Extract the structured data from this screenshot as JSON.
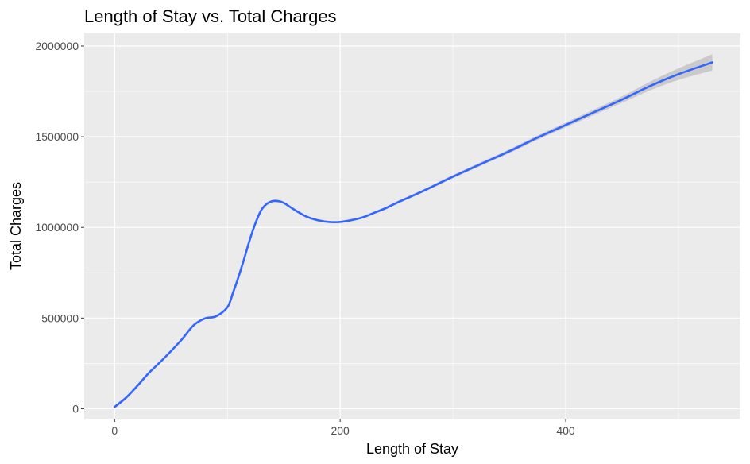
{
  "chart_data": {
    "type": "line",
    "title": "Length of Stay vs. Total Charges",
    "xlabel": "Length of Stay",
    "ylabel": "Total Charges",
    "xlim": [
      -27,
      555
    ],
    "ylim": [
      -55000,
      2070000
    ],
    "x_ticks": [
      0,
      200,
      400
    ],
    "x_tick_labels": [
      "0",
      "200",
      "400"
    ],
    "y_ticks": [
      0,
      500000,
      1000000,
      1500000,
      2000000
    ],
    "y_tick_labels": [
      "0",
      "500000",
      "1000000",
      "1500000",
      "2000000"
    ],
    "grid": true,
    "legend": "none",
    "colors": {
      "panel": "#ebebeb",
      "grid": "#ffffff",
      "line": "#3366ff",
      "ribbon": "#bfbfbf"
    },
    "series": [
      {
        "smooth": true,
        "x": [
          0,
          10,
          20,
          30,
          40,
          50,
          60,
          70,
          80,
          90,
          100,
          105,
          110,
          115,
          120,
          125,
          130,
          135,
          140,
          145,
          150,
          160,
          170,
          180,
          190,
          200,
          210,
          220,
          230,
          240,
          250,
          275,
          300,
          325,
          350,
          375,
          400,
          425,
          450,
          475,
          500,
          530
        ],
        "y": [
          10000,
          60000,
          125000,
          195000,
          255000,
          318000,
          385000,
          460000,
          498000,
          510000,
          560000,
          640000,
          730000,
          830000,
          935000,
          1025000,
          1095000,
          1130000,
          1145000,
          1145000,
          1135000,
          1095000,
          1060000,
          1040000,
          1030000,
          1030000,
          1040000,
          1055000,
          1080000,
          1105000,
          1135000,
          1205000,
          1280000,
          1350000,
          1420000,
          1495000,
          1565000,
          1635000,
          1705000,
          1780000,
          1845000,
          1910000
        ],
        "ci_halfwidth": [
          9000,
          7000,
          6000,
          6000,
          6000,
          6000,
          6000,
          6000,
          6000,
          6000,
          7000,
          7000,
          7000,
          7000,
          7000,
          7000,
          7000,
          7000,
          7000,
          7000,
          7000,
          6000,
          6000,
          6000,
          6000,
          6000,
          6000,
          6000,
          6000,
          7000,
          7000,
          8000,
          9000,
          10000,
          11000,
          12000,
          13000,
          15000,
          18000,
          24000,
          32000,
          45000
        ]
      }
    ]
  }
}
